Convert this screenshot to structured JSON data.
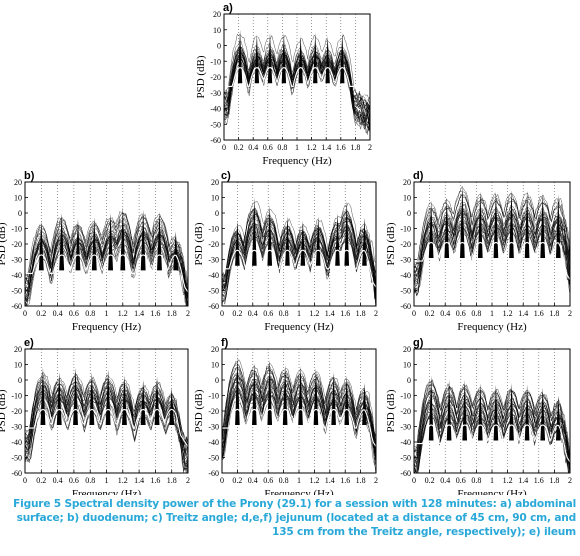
{
  "caption": "Figure 5 Spectral density power of the Prony (29.1) for a session with 128 minutes: a) abdominal surface; b) duodenum; c) Treitz angle; d,e,f) jejunum (located at a distance of 45 cm, 90 cm, and 135 cm from the Treitz angle, respectively); e) ileum",
  "colors": {
    "caption": "#2aa8d8",
    "traces": "#000000",
    "mean_trace": "#ffffff"
  },
  "chart_data": [
    {
      "type": "line",
      "panel_label": "a)",
      "xlabel": "Frequency (Hz)",
      "ylabel": "PSD (dB)",
      "xlim": [
        0,
        2
      ],
      "ylim": [
        -60,
        20
      ],
      "xticks": [
        "0",
        "0.2",
        "0.4",
        "0.6",
        "0.8",
        "1",
        "1.2",
        "1.4",
        "1.6",
        "1.8",
        "2"
      ],
      "yticks": [
        "20",
        "10",
        "0",
        "-10",
        "-20",
        "-30",
        "-40",
        "-50",
        "-60"
      ],
      "grid": "dotted vertical lines",
      "peaks": [
        {
          "x": 0.22,
          "y": 10
        },
        {
          "x": 0.45,
          "y": 7
        },
        {
          "x": 0.63,
          "y": 8
        },
        {
          "x": 0.82,
          "y": 8
        },
        {
          "x": 1.05,
          "y": 6
        },
        {
          "x": 1.25,
          "y": 8
        },
        {
          "x": 1.42,
          "y": 6
        },
        {
          "x": 1.62,
          "y": 8
        }
      ],
      "mean_level_db": -20
    },
    {
      "type": "line",
      "panel_label": "b)",
      "xlabel": "Frequency (Hz)",
      "ylabel": "PSD (dB)",
      "xlim": [
        0,
        2
      ],
      "ylim": [
        -60,
        20
      ],
      "xticks": [
        "0",
        "0.2",
        "0.4",
        "0.6",
        "0.8",
        "1",
        "1.2",
        "1.4",
        "1.6",
        "1.8",
        "2"
      ],
      "yticks": [
        "20",
        "10",
        "0",
        "-10",
        "-20",
        "-30",
        "-40",
        "-50",
        "-60"
      ],
      "grid": "dotted vertical lines",
      "peaks": [
        {
          "x": 0.2,
          "y": -5
        },
        {
          "x": 0.45,
          "y": 0
        },
        {
          "x": 0.65,
          "y": -4
        },
        {
          "x": 0.85,
          "y": -3
        },
        {
          "x": 1.05,
          "y": 0
        },
        {
          "x": 1.2,
          "y": 4
        },
        {
          "x": 1.45,
          "y": 2
        },
        {
          "x": 1.65,
          "y": 1
        },
        {
          "x": 1.85,
          "y": -12
        }
      ],
      "mean_level_db": -33
    },
    {
      "type": "line",
      "panel_label": "c)",
      "xlabel": "Frequency (Hz)",
      "ylabel": "PSD (dB)",
      "xlim": [
        0,
        2
      ],
      "ylim": [
        -60,
        20
      ],
      "xticks": [
        "0",
        "0.2",
        "0.4",
        "0.6",
        "0.8",
        "1",
        "1.2",
        "1.4",
        "1.6",
        "1.8",
        "2"
      ],
      "yticks": [
        "20",
        "10",
        "0",
        "-10",
        "-20",
        "-30",
        "-40",
        "-50",
        "-60"
      ],
      "grid": "dotted vertical lines",
      "peaks": [
        {
          "x": 0.2,
          "y": -5
        },
        {
          "x": 0.42,
          "y": 10
        },
        {
          "x": 0.62,
          "y": 5
        },
        {
          "x": 0.85,
          "y": -2
        },
        {
          "x": 1.05,
          "y": -5
        },
        {
          "x": 1.25,
          "y": -2
        },
        {
          "x": 1.5,
          "y": 0
        },
        {
          "x": 1.62,
          "y": 8
        },
        {
          "x": 1.85,
          "y": -3
        }
      ],
      "mean_level_db": -30
    },
    {
      "type": "line",
      "panel_label": "d)",
      "xlabel": "Frequency (Hz)",
      "ylabel": "PSD (dB)",
      "xlim": [
        0,
        2
      ],
      "ylim": [
        -60,
        20
      ],
      "xticks": [
        "0",
        "0.2",
        "0.4",
        "0.6",
        "0.8",
        "1",
        "1.2",
        "1.4",
        "1.6",
        "1.8",
        "2"
      ],
      "yticks": [
        "20",
        "10",
        "0",
        "-10",
        "-20",
        "-30",
        "-40",
        "-50",
        "-60"
      ],
      "grid": "dotted vertical lines",
      "peaks": [
        {
          "x": 0.22,
          "y": 8
        },
        {
          "x": 0.42,
          "y": 10
        },
        {
          "x": 0.62,
          "y": 18
        },
        {
          "x": 0.85,
          "y": 14
        },
        {
          "x": 1.05,
          "y": 14
        },
        {
          "x": 1.25,
          "y": 15
        },
        {
          "x": 1.45,
          "y": 14
        },
        {
          "x": 1.65,
          "y": 13
        },
        {
          "x": 1.85,
          "y": 12
        }
      ],
      "mean_level_db": -25
    },
    {
      "type": "line",
      "panel_label": "e)",
      "xlabel": "Frequency (Hz)",
      "ylabel": "PSD (dB)",
      "xlim": [
        0,
        2
      ],
      "ylim": [
        -60,
        20
      ],
      "xticks": [
        "0",
        "0.2",
        "0.4",
        "0.6",
        "0.8",
        "1",
        "1.2",
        "1.4",
        "1.6",
        "1.8",
        "2"
      ],
      "yticks": [
        "20",
        "10",
        "0",
        "-10",
        "-20",
        "-30",
        "-40",
        "-50",
        "-60"
      ],
      "grid": "dotted vertical lines",
      "peaks": [
        {
          "x": 0.22,
          "y": 8
        },
        {
          "x": 0.42,
          "y": 5
        },
        {
          "x": 0.62,
          "y": 8
        },
        {
          "x": 0.82,
          "y": 5
        },
        {
          "x": 1.02,
          "y": 7
        },
        {
          "x": 1.22,
          "y": 3
        },
        {
          "x": 1.45,
          "y": 0
        },
        {
          "x": 1.62,
          "y": 2
        },
        {
          "x": 1.8,
          "y": -5
        }
      ],
      "mean_level_db": -25
    },
    {
      "type": "line",
      "panel_label": "f)",
      "xlabel": "Frequency (Hz)",
      "ylabel": "PSD (dB)",
      "xlim": [
        0,
        2
      ],
      "ylim": [
        -60,
        20
      ],
      "xticks": [
        "0",
        "0.2",
        "0.4",
        "0.6",
        "0.8",
        "1",
        "1.2",
        "1.4",
        "1.6",
        "1.8",
        "2"
      ],
      "yticks": [
        "20",
        "10",
        "0",
        "-10",
        "-20",
        "-30",
        "-40",
        "-50",
        "-60"
      ],
      "grid": "dotted vertical lines",
      "peaks": [
        {
          "x": 0.2,
          "y": 15
        },
        {
          "x": 0.42,
          "y": 11
        },
        {
          "x": 0.62,
          "y": 13
        },
        {
          "x": 0.82,
          "y": 10
        },
        {
          "x": 1.02,
          "y": 9
        },
        {
          "x": 1.22,
          "y": 8
        },
        {
          "x": 1.45,
          "y": 5
        },
        {
          "x": 1.62,
          "y": 3
        },
        {
          "x": 1.85,
          "y": -2
        }
      ],
      "mean_level_db": -25
    },
    {
      "type": "line",
      "panel_label": "g)",
      "xlabel": "Frequency (Hz)",
      "ylabel": "PSD (dB)",
      "xlim": [
        0,
        2
      ],
      "ylim": [
        -60,
        20
      ],
      "xticks": [
        "0",
        "0.2",
        "0.4",
        "0.6",
        "0.8",
        "1",
        "1.2",
        "1.4",
        "1.6",
        "1.8",
        "2"
      ],
      "yticks": [
        "20",
        "10",
        "0",
        "-10",
        "-20",
        "-30",
        "-40",
        "-50",
        "-60"
      ],
      "grid": "dotted vertical lines",
      "peaks": [
        {
          "x": 0.22,
          "y": 3
        },
        {
          "x": 0.45,
          "y": 0
        },
        {
          "x": 0.65,
          "y": 0
        },
        {
          "x": 0.85,
          "y": -2
        },
        {
          "x": 1.05,
          "y": -3
        },
        {
          "x": 1.25,
          "y": -2
        },
        {
          "x": 1.45,
          "y": -3
        },
        {
          "x": 1.65,
          "y": -5
        },
        {
          "x": 1.85,
          "y": -10
        }
      ],
      "mean_level_db": -35
    }
  ]
}
